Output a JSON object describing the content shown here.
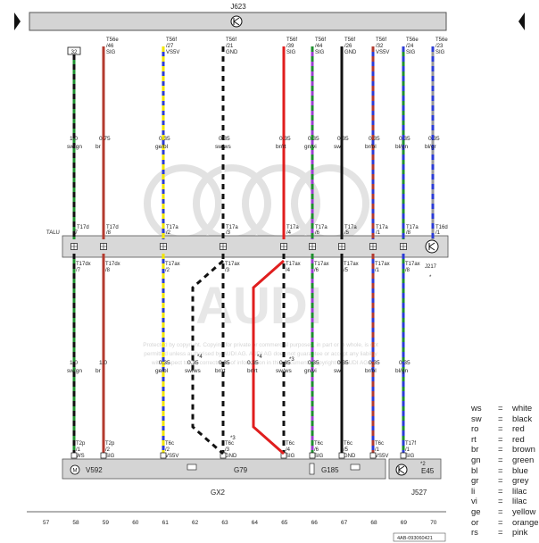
{
  "header": {
    "control_unit": "J623"
  },
  "top_box": "32",
  "connectors": {
    "row_label": "TALU",
    "ground_tag": "J217"
  },
  "wires": [
    {
      "top": [
        "T56e",
        "/46",
        "SIG"
      ],
      "spec": [
        "0.75",
        "br"
      ],
      "top2": [
        "T17d",
        "/8"
      ],
      "bot": [
        "T17dx",
        "/8"
      ],
      "spec2": [
        "1.0",
        "br"
      ],
      "end": [
        "T2p",
        "/2",
        "SIG"
      ],
      "colors": [
        "#b33a2e"
      ],
      "style": "solid"
    },
    {
      "top": [
        "T56f",
        "/27",
        "VS5V"
      ],
      "spec": [
        "0.35",
        "ge/bl"
      ],
      "top2": [
        "T17a",
        "/2"
      ],
      "bot": [
        "T17ax",
        "/2"
      ],
      "spec2": [
        "0.35",
        "ge/bl"
      ],
      "end": [
        "T6c",
        "/2",
        "VS5V"
      ],
      "colors": [
        "#f2e600",
        "#2b3bd6"
      ],
      "style": "dash"
    },
    {
      "top": [
        "T56f",
        "/21",
        "GND"
      ],
      "spec": [
        "0.35",
        "sw/ws"
      ],
      "top2": [
        "T17a",
        "/3"
      ],
      "bot": [
        "T17ax",
        "/3"
      ],
      "spec2": [
        "0.35",
        "br/rt"
      ],
      "end": [
        "T6c",
        "/3",
        "GND"
      ],
      "colors": [
        "#111111",
        "#ffffff"
      ],
      "style": "dash"
    },
    {
      "top": [
        "T56f",
        "/39",
        "SIG"
      ],
      "spec": [
        "0.35",
        "br/rt"
      ],
      "top2": [
        "T17a",
        "/4"
      ],
      "bot": [
        "T17ax",
        "/4"
      ],
      "spec2": [
        "0.35",
        "sw/ws"
      ],
      "end": [
        "T6c",
        "/4",
        "SIG"
      ],
      "colors": [
        "#e01e1e"
      ],
      "style": "solid"
    },
    {
      "top": [
        "T56f",
        "/44",
        "SIG"
      ],
      "spec": [
        "0.35",
        "gn/vi"
      ],
      "top2": [
        "T17a",
        "/6"
      ],
      "bot": [
        "T17ax",
        "/6"
      ],
      "spec2": [
        "0.35",
        "gn/vi"
      ],
      "end": [
        "T6c",
        "/6",
        "SIG"
      ],
      "colors": [
        "#1e8f2e",
        "#9b3fd0"
      ],
      "style": "dash"
    },
    {
      "top": [
        "T56f",
        "/26",
        "GND"
      ],
      "spec": [
        "0.35",
        "sw"
      ],
      "top2": [
        "T17a",
        "/5"
      ],
      "bot": [
        "T17ax",
        "/5"
      ],
      "spec2": [
        "0.35",
        "sw"
      ],
      "end": [
        "T6c",
        "/5",
        "GND"
      ],
      "colors": [
        "#111111"
      ],
      "style": "solid"
    },
    {
      "top": [
        "T56f",
        "/32",
        "VS5V"
      ],
      "spec": [
        "0.35",
        "br/bl"
      ],
      "top2": [
        "T17a",
        "/1"
      ],
      "bot": [
        "T17ax",
        "/1"
      ],
      "spec2": [
        "0.35",
        "br/bl"
      ],
      "end": [
        "T6c",
        "/1",
        "VS5V"
      ],
      "colors": [
        "#b33a2e",
        "#2b3bd6"
      ],
      "style": "dash"
    },
    {
      "top": [
        "T56e",
        "/24",
        "SIG"
      ],
      "spec": [
        "0.35",
        "bl/gn"
      ],
      "top2": [
        "T17a",
        "/8"
      ],
      "bot": [
        "T17ax",
        "/8"
      ],
      "spec2": [
        "0.35",
        "bl/gn"
      ],
      "end": [
        "T17f",
        "/1",
        "SIG"
      ],
      "colors": [
        "#2b3bd6",
        "#1e8f2e"
      ],
      "style": "dash"
    },
    {
      "top": [
        "T56e",
        "/23",
        "SIG"
      ],
      "spec": [
        "0.35",
        "bl/gr"
      ],
      "top2": [
        "T16d",
        "/1"
      ],
      "bot": [
        "",
        "",
        ""
      ],
      "spec2": [
        "",
        ""
      ],
      "end": [
        "",
        "",
        ""
      ],
      "colors": [
        "#2b3bd6",
        "#999999"
      ],
      "style": "dash"
    }
  ],
  "left_wire": {
    "spec": [
      "1.0",
      "sw/gn"
    ],
    "top2": [
      "T17d",
      "/7"
    ],
    "bot": [
      "T17dx",
      "/7"
    ],
    "spec2": [
      "1.0",
      "sw/gn"
    ],
    "end": [
      "T2p",
      "/1",
      "WS"
    ]
  },
  "crossover": {
    "left": {
      "num": "*4",
      "spec": [
        "0.35",
        "sw/ws"
      ]
    },
    "right": {
      "num": "*4",
      "spec": [
        "0.35",
        "br/rt"
      ]
    },
    "star3": "*3"
  },
  "components": {
    "motor": "V592",
    "sensor1": "G79",
    "sensor2": "G185",
    "group": "GX2",
    "tag1": "E45",
    "tag2": "J527",
    "star2": "*2",
    "star": "*"
  },
  "watermark": {
    "brand": "AUDI",
    "line1": "Protected by copyright. Copying for private or commercial purposes, in part or in whole, is not",
    "line2": "permitted unless authorised by AUDI AG. AUDI AG does not guarantee or accept any liability",
    "line3": "with respect to the correctness of information in this document. Copyright by AUDI AG."
  },
  "columns": [
    "57",
    "58",
    "59",
    "60",
    "61",
    "62",
    "63",
    "64",
    "65",
    "66",
    "67",
    "68",
    "69",
    "70"
  ],
  "legend": [
    {
      "code": "ws",
      "name": "white"
    },
    {
      "code": "sw",
      "name": "black"
    },
    {
      "code": "ro",
      "name": "red"
    },
    {
      "code": "rt",
      "name": "red"
    },
    {
      "code": "br",
      "name": "brown"
    },
    {
      "code": "gn",
      "name": "green"
    },
    {
      "code": "bl",
      "name": "blue"
    },
    {
      "code": "gr",
      "name": "grey"
    },
    {
      "code": "li",
      "name": "lilac"
    },
    {
      "code": "vi",
      "name": "lilac"
    },
    {
      "code": "ge",
      "name": "yellow"
    },
    {
      "code": "or",
      "name": "orange"
    },
    {
      "code": "rs",
      "name": "pink"
    }
  ],
  "doc_id": "4AB-093060421"
}
